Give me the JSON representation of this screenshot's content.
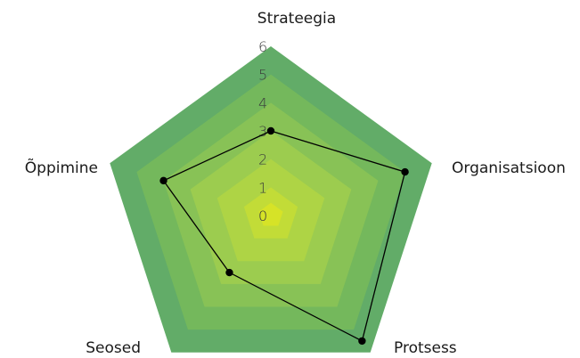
{
  "chart_data": {
    "type": "radar",
    "title": "",
    "axes": [
      "Strateegia",
      "Organisatsioon",
      "Protsess",
      "Seosed",
      "Õppimine"
    ],
    "scale": {
      "min": 0,
      "max": 6,
      "ticks": [
        0,
        1,
        2,
        3,
        4,
        5,
        6
      ]
    },
    "series": [
      {
        "values": [
          3,
          5,
          5.5,
          2.5,
          4
        ]
      }
    ],
    "band_colors": [
      "#d6e327",
      "#c2dc37",
      "#aed445",
      "#9ccc4f",
      "#88c256",
      "#74b85c",
      "#62ac68"
    ],
    "line_color": "#000000",
    "grid": false,
    "legend": "none"
  }
}
